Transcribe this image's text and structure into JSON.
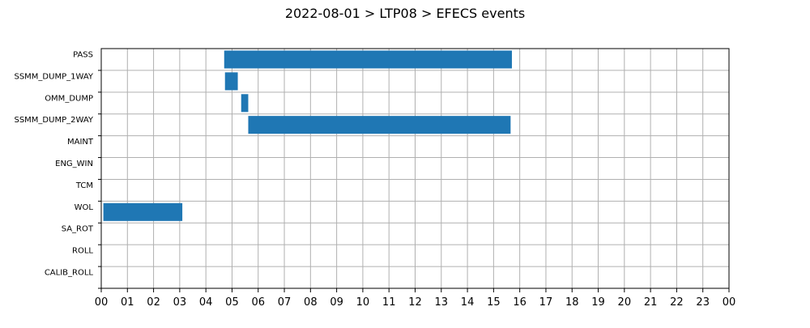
{
  "chart_data": {
    "type": "bar",
    "orientation": "horizontal",
    "title": "2022-08-01 > LTP08 > EFECS events",
    "xlabel": "",
    "ylabel": "",
    "x_unit": "hour of day",
    "xlim": [
      0,
      24
    ],
    "x_tick_labels": [
      "00",
      "01",
      "02",
      "03",
      "04",
      "05",
      "06",
      "07",
      "08",
      "09",
      "10",
      "11",
      "12",
      "13",
      "14",
      "15",
      "16",
      "17",
      "18",
      "19",
      "20",
      "21",
      "22",
      "23",
      "00"
    ],
    "categories": [
      "PASS",
      "SSMM_DUMP_1WAY",
      "OMM_DUMP",
      "SSMM_DUMP_2WAY",
      "MAINT",
      "ENG_WIN",
      "TCM",
      "WOL",
      "SA_ROT",
      "ROLL",
      "CALIB_ROLL"
    ],
    "intervals": [
      {
        "category": "PASS",
        "start": 4.7,
        "end": 15.7
      },
      {
        "category": "SSMM_DUMP_1WAY",
        "start": 4.73,
        "end": 5.22
      },
      {
        "category": "OMM_DUMP",
        "start": 5.35,
        "end": 5.62
      },
      {
        "category": "SSMM_DUMP_2WAY",
        "start": 5.62,
        "end": 15.65
      },
      {
        "category": "WOL",
        "start": 0.08,
        "end": 3.1
      }
    ],
    "bar_color": "#1f77b4",
    "grid": true,
    "legend": "none"
  }
}
